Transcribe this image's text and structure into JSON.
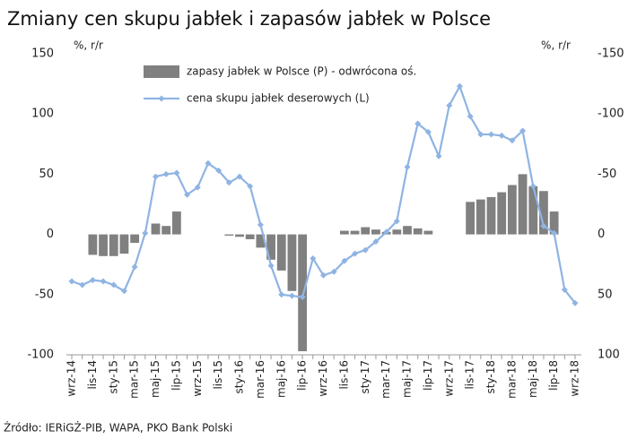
{
  "chart_data": {
    "type": "bar_line",
    "title": "Zmiany cen skupu jabłek i zapasów jabłek w Polsce",
    "ylabel": "%, r/r",
    "y2label": "%, r/r",
    "source": "Źródło: IERiGŻ-PIB, WAPA, PKO Bank Polski",
    "categories": [
      "wrz-14",
      null,
      "lis-14",
      null,
      "sty-15",
      null,
      "mar-15",
      null,
      "maj-15",
      null,
      "lip-15",
      null,
      "wrz-15",
      null,
      "lis-15",
      null,
      "sty-16",
      null,
      "mar-16",
      null,
      "maj-16",
      null,
      "lip-16",
      null,
      "wrz-16",
      null,
      "lis-16",
      null,
      "sty-17",
      null,
      "mar-17",
      null,
      "maj-17",
      null,
      "lip-17",
      null,
      "wrz-17",
      null,
      "lis-17",
      null,
      "sty-18",
      null,
      "mar-18",
      null,
      "maj-18",
      null,
      "lip-18",
      null,
      "wrz-18"
    ],
    "series": [
      {
        "name": "zapasy jabłek w Polsce (P) - odwrócona oś.",
        "type": "bar",
        "axis": "y2",
        "color": "#808080",
        "values": [
          null,
          null,
          17,
          18,
          18,
          16,
          7,
          null,
          -9,
          -7,
          -19,
          null,
          null,
          null,
          null,
          1,
          2,
          4,
          11,
          21,
          30,
          47,
          97,
          null,
          null,
          null,
          -3,
          -3,
          -6,
          -4,
          -2,
          -4,
          -7,
          -5,
          -3,
          null,
          null,
          null,
          -27,
          -29,
          -31,
          -35,
          -41,
          -50,
          -40,
          -36,
          -19,
          null,
          null
        ]
      },
      {
        "name": "cena skupu jabłek deserowych (L)",
        "type": "line",
        "color": "#8fb4e3",
        "values": [
          -39,
          -42,
          -38,
          -39,
          -42,
          -47,
          -27,
          1,
          48,
          50,
          51,
          33,
          39,
          59,
          53,
          43,
          48,
          40,
          8,
          -26,
          -50,
          -51,
          -52,
          -20,
          -34,
          -31,
          -22,
          -16,
          -13,
          -6,
          2,
          11,
          56,
          92,
          85,
          65,
          107,
          123,
          98,
          83,
          83,
          82,
          78,
          86,
          40,
          7,
          1,
          -46,
          -57
        ]
      }
    ],
    "ylim": [
      -100,
      150
    ],
    "yticks": [
      -100,
      -50,
      0,
      50,
      100,
      150
    ],
    "y2lim": [
      100,
      -150
    ],
    "y2ticks": [
      -150,
      -100,
      -50,
      0,
      50,
      100
    ],
    "grid": false,
    "legend": "top"
  }
}
